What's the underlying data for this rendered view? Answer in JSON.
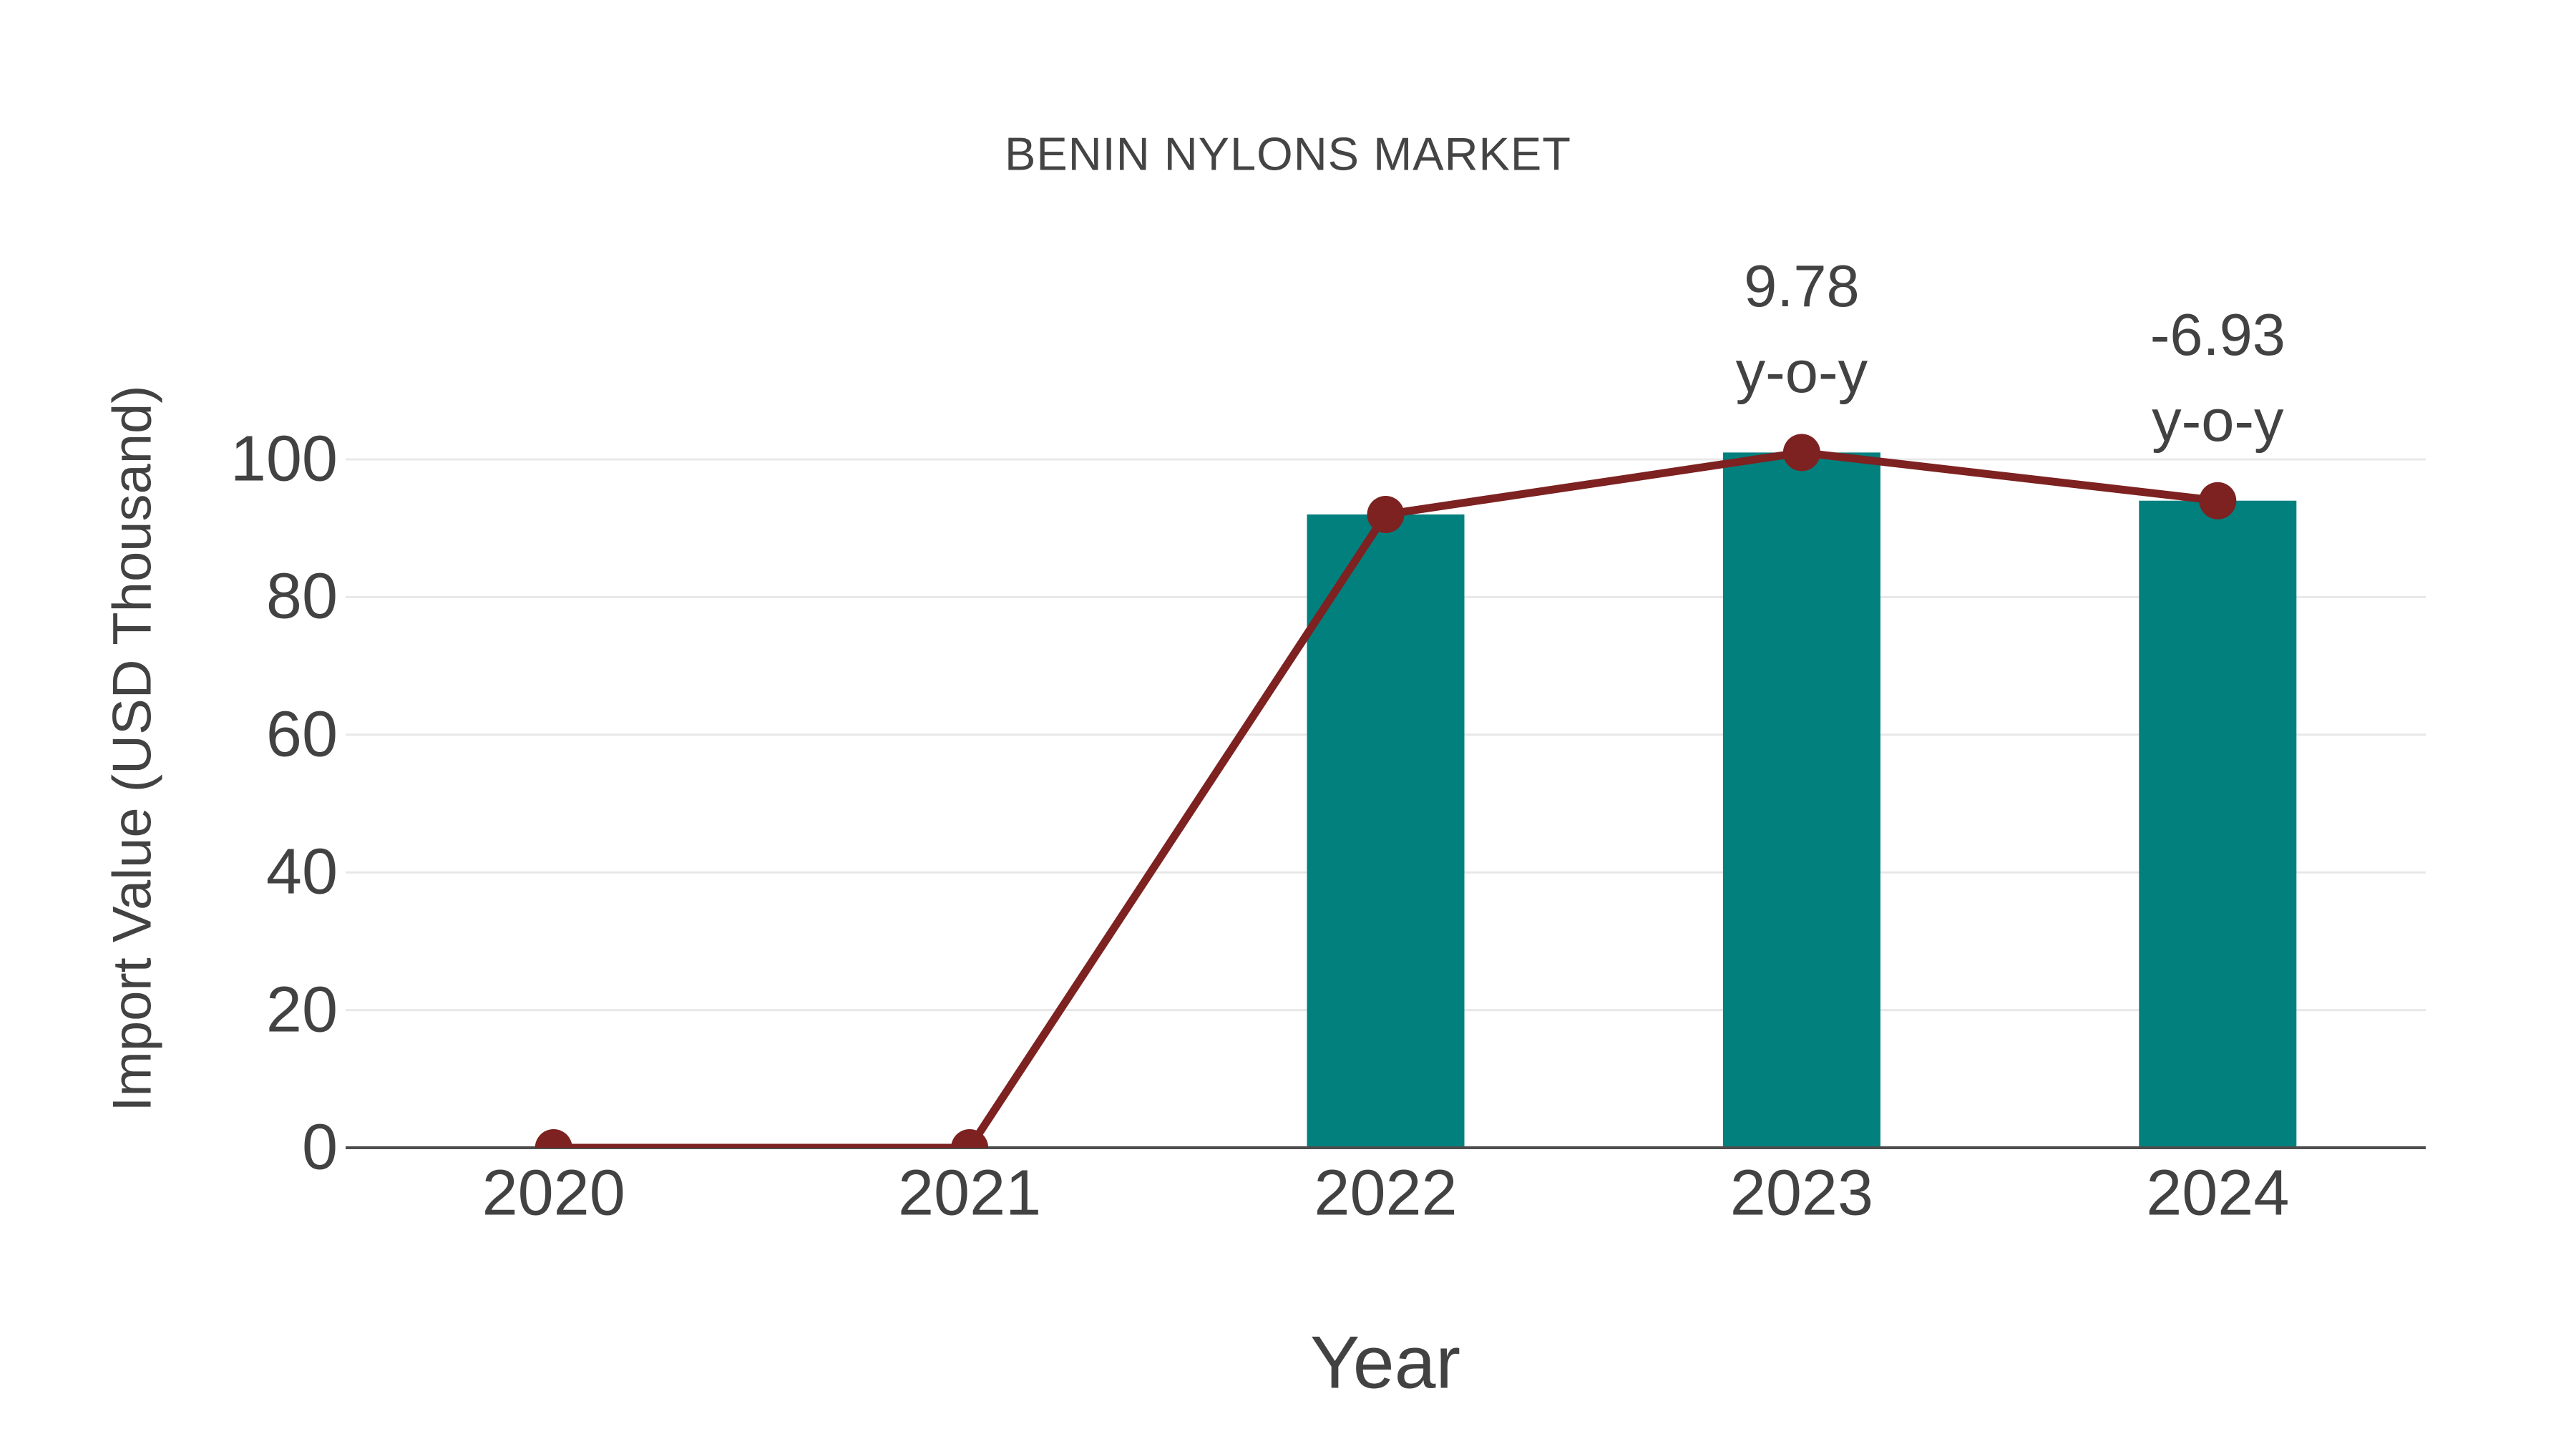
{
  "figure": {
    "title": "BENIN NYLONS MARKET"
  },
  "chart_data": {
    "type": "bar+line",
    "title": "BENIN NYLONS MARKET",
    "xlabel": "Year",
    "ylabel": "Import Value (USD Thousand)",
    "categories": [
      "2020",
      "2021",
      "2022",
      "2023",
      "2024"
    ],
    "series": [
      {
        "name": "import-value-bars",
        "type": "bar",
        "values": [
          0,
          0,
          92,
          101,
          94
        ]
      },
      {
        "name": "import-value-line",
        "type": "line",
        "values": [
          0,
          0,
          92,
          101,
          94
        ],
        "marker": "circle"
      }
    ],
    "yticks": [
      0,
      20,
      40,
      60,
      80,
      100
    ],
    "ylim": [
      0,
      106
    ],
    "grid": true,
    "legend": "none",
    "annotations": [
      {
        "lines": [
          "9.78",
          "y-o-y"
        ],
        "category": "2023"
      },
      {
        "lines": [
          "-6.93",
          "y-o-y"
        ],
        "category": "2024"
      }
    ],
    "colors": {
      "bar": "#01807E",
      "line": "#7D2121",
      "marker": "#7D2121",
      "grid": "#E8E8E8",
      "axis_line": "#4D4D4D",
      "text": "#424242"
    }
  }
}
